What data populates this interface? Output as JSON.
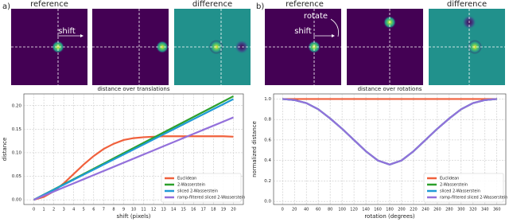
{
  "panels": [
    {
      "label": "a)",
      "left_title": "reference",
      "right_title": "difference",
      "arrow_labels": [
        "shift"
      ]
    },
    {
      "label": "b)",
      "left_title": "reference",
      "right_title": "difference",
      "arrow_labels": [
        "rotate",
        "shift"
      ]
    }
  ],
  "chart_data": [
    {
      "type": "line",
      "title": "distance over translations",
      "x_label": "shift (pixels)",
      "y_label": "distance",
      "x": [
        0,
        1,
        2,
        3,
        4,
        5,
        6,
        7,
        8,
        9,
        10,
        11,
        12,
        13,
        14,
        15,
        16,
        17,
        18,
        19,
        20
      ],
      "xlim": [
        -1,
        21
      ],
      "xticks": [
        0,
        1,
        2,
        3,
        4,
        5,
        6,
        7,
        8,
        9,
        10,
        11,
        12,
        13,
        14,
        15,
        16,
        17,
        18,
        19,
        20
      ],
      "ylim": [
        -0.01,
        0.225
      ],
      "yticks": [
        {
          "value": 0,
          "label": "0.00"
        },
        {
          "value": 0.05,
          "label": "0.05"
        },
        {
          "value": 0.1,
          "label": "0.10"
        },
        {
          "value": 0.15,
          "label": "0.15"
        },
        {
          "value": 0.2,
          "label": "0.20"
        }
      ],
      "grid": true,
      "legend": "lower right",
      "series": [
        {
          "name": "Euclidean",
          "color": "#f0603c",
          "values": [
            0,
            0.006,
            0.018,
            0.035,
            0.055,
            0.075,
            0.093,
            0.108,
            0.119,
            0.127,
            0.131,
            0.133,
            0.134,
            0.135,
            0.135,
            0.135,
            0.135,
            0.135,
            0.135,
            0.135,
            0.134
          ]
        },
        {
          "name": "2-Wasserstein",
          "color": "#2ca02c",
          "values": [
            0,
            0.011,
            0.022,
            0.033,
            0.044,
            0.055,
            0.066,
            0.077,
            0.088,
            0.099,
            0.11,
            0.121,
            0.132,
            0.143,
            0.154,
            0.165,
            0.176,
            0.187,
            0.198,
            0.209,
            0.22
          ]
        },
        {
          "name": "sliced 2-Wasserstein",
          "color": "#1f9bd6",
          "values": [
            0,
            0.0107,
            0.0214,
            0.0321,
            0.0428,
            0.0535,
            0.0642,
            0.0749,
            0.0856,
            0.0963,
            0.107,
            0.1177,
            0.1284,
            0.1391,
            0.1498,
            0.1605,
            0.1712,
            0.1819,
            0.1926,
            0.2033,
            0.214
          ]
        },
        {
          "name": "ramp-filtered sliced 2-Wasserstein",
          "color": "#9370db",
          "values": [
            0,
            0.0088,
            0.0175,
            0.0263,
            0.035,
            0.0438,
            0.0525,
            0.0613,
            0.07,
            0.0788,
            0.0875,
            0.0963,
            0.105,
            0.1138,
            0.1225,
            0.1313,
            0.14,
            0.1488,
            0.1575,
            0.1663,
            0.175
          ]
        }
      ]
    },
    {
      "type": "line",
      "title": "distance over rotations",
      "x_label": "rotation (degrees)",
      "y_label": "normalized distance",
      "x": [
        0,
        20,
        40,
        60,
        80,
        100,
        120,
        140,
        160,
        180,
        200,
        220,
        240,
        260,
        280,
        300,
        320,
        340,
        360
      ],
      "xlim": [
        -15,
        375
      ],
      "xticks": [
        0,
        20,
        40,
        60,
        80,
        100,
        120,
        140,
        160,
        180,
        200,
        220,
        240,
        260,
        280,
        300,
        320,
        340,
        360
      ],
      "ylim": [
        -0.03,
        1.05
      ],
      "yticks": [
        {
          "value": 0,
          "label": "0.0"
        },
        {
          "value": 0.2,
          "label": "0.2"
        },
        {
          "value": 0.4,
          "label": "0.4"
        },
        {
          "value": 0.6,
          "label": "0.6"
        },
        {
          "value": 0.8,
          "label": "0.8"
        },
        {
          "value": 1,
          "label": "1.0"
        }
      ],
      "grid": true,
      "legend": "lower right",
      "series": [
        {
          "name": "Euclidean",
          "color": "#f0603c",
          "values": [
            1,
            1,
            1,
            1,
            1,
            1,
            1,
            1,
            1,
            1,
            1,
            1,
            1,
            1,
            1,
            1,
            1,
            1,
            1
          ]
        },
        {
          "name": "2-Wasserstein",
          "color": "#2ca02c",
          "values": [
            1,
            0.99,
            0.96,
            0.9,
            0.81,
            0.71,
            0.6,
            0.49,
            0.4,
            0.36,
            0.4,
            0.49,
            0.6,
            0.71,
            0.81,
            0.9,
            0.96,
            0.99,
            1
          ]
        },
        {
          "name": "sliced 2-Wasserstein",
          "color": "#1f9bd6",
          "values": [
            1,
            0.99,
            0.96,
            0.9,
            0.81,
            0.71,
            0.6,
            0.49,
            0.4,
            0.36,
            0.4,
            0.49,
            0.6,
            0.71,
            0.81,
            0.9,
            0.96,
            0.99,
            1
          ]
        },
        {
          "name": "ramp-filtered sliced 2-Wasserstein",
          "color": "#9370db",
          "values": [
            1,
            0.99,
            0.96,
            0.9,
            0.81,
            0.71,
            0.6,
            0.49,
            0.4,
            0.36,
            0.4,
            0.49,
            0.6,
            0.71,
            0.81,
            0.9,
            0.96,
            0.99,
            1
          ]
        }
      ]
    }
  ]
}
